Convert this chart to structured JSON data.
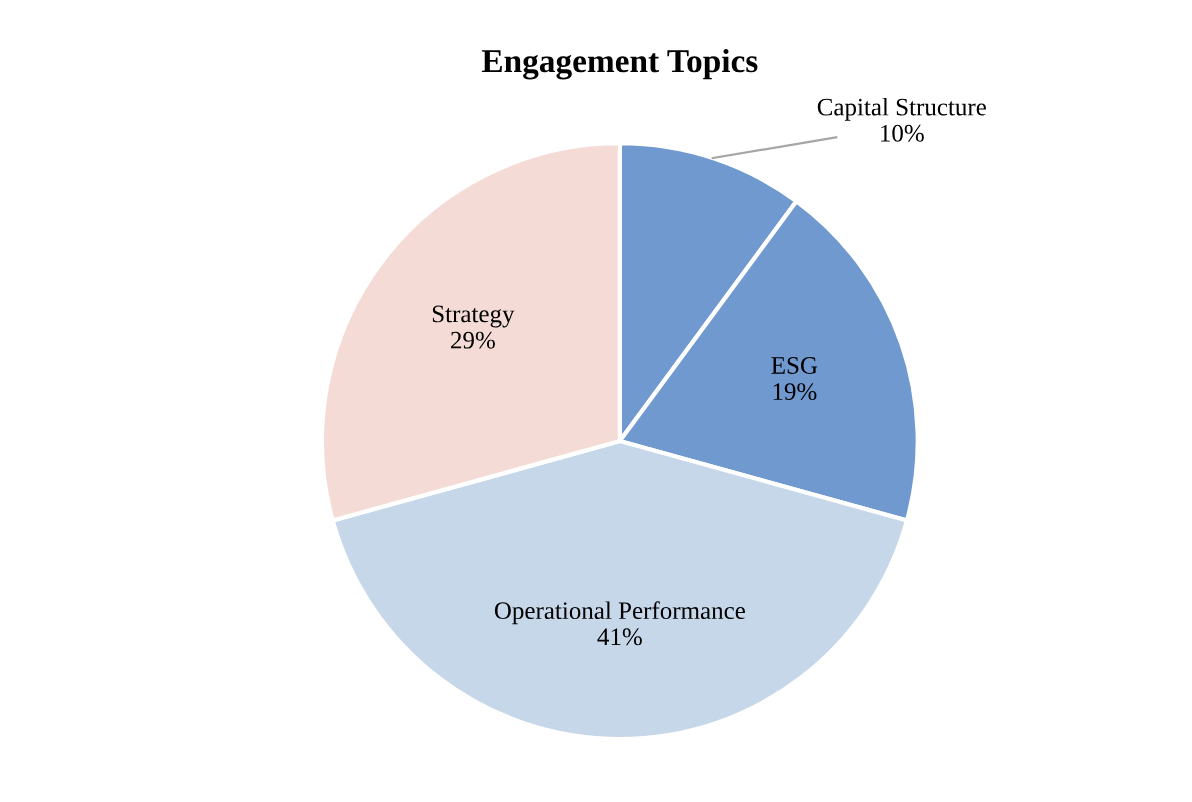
{
  "chart_data": {
    "type": "pie",
    "title": "Engagement Topics",
    "categories": [
      "Capital Structure",
      "ESG",
      "Operational Performance",
      "Strategy"
    ],
    "values": [
      10,
      19,
      41,
      29
    ],
    "value_labels": [
      "10%",
      "19%",
      "41%",
      "29%"
    ],
    "colors": [
      "#7099cf",
      "#7099cf",
      "#c6d7ea",
      "#f4dbd5"
    ],
    "legend": false
  }
}
